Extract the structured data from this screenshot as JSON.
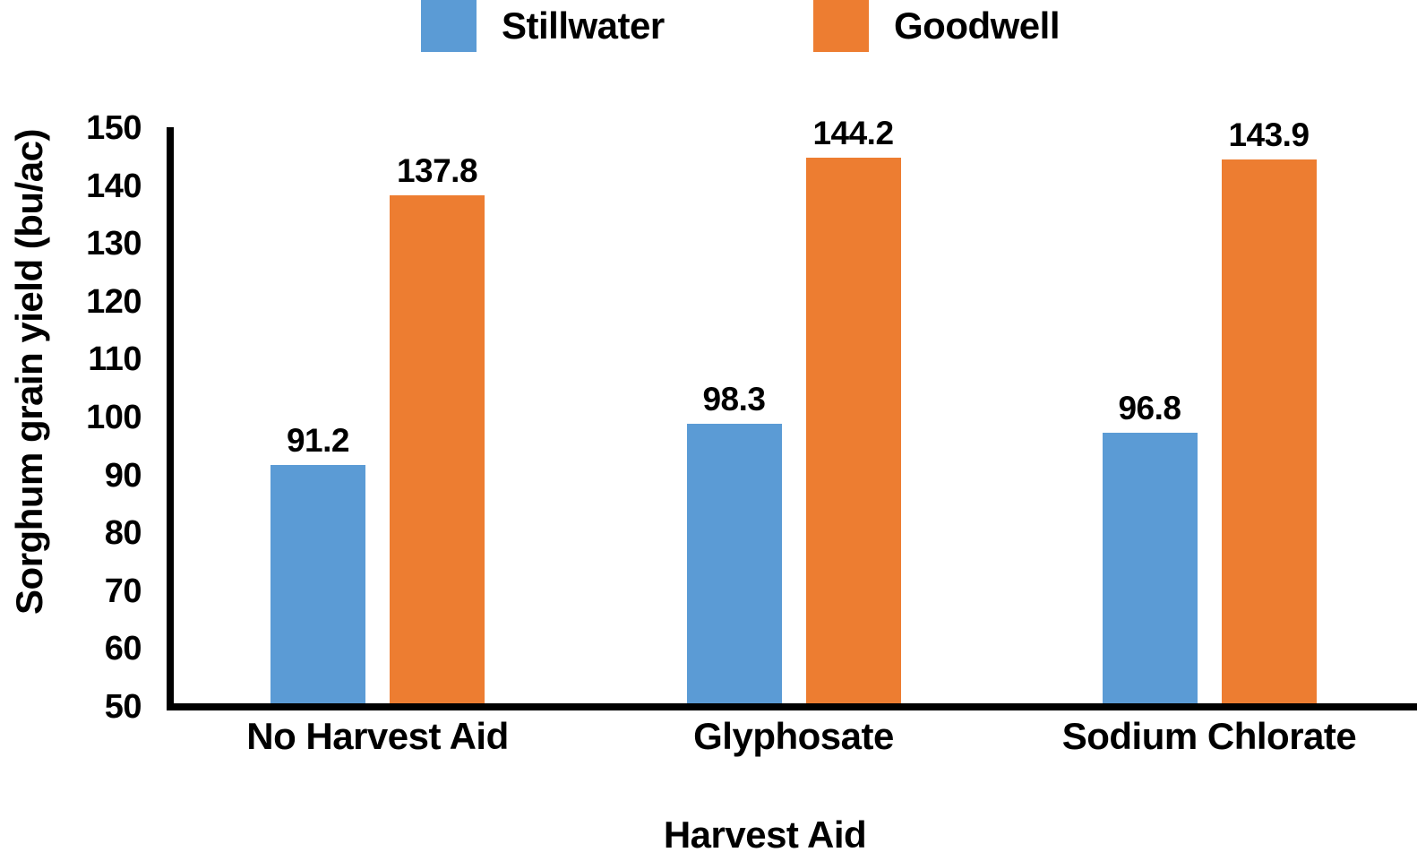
{
  "chart_data": {
    "type": "bar",
    "title": "",
    "xlabel": "Harvest Aid",
    "ylabel": "Sorghum grain yield (bu/ac)",
    "ylim": [
      50,
      150
    ],
    "ytick_step": 10,
    "yticks": [
      150,
      140,
      130,
      120,
      110,
      100,
      90,
      80,
      70,
      60,
      50
    ],
    "categories": [
      "No Harvest Aid",
      "Glyphosate",
      "Sodium Chlorate"
    ],
    "series": [
      {
        "name": "Stillwater",
        "color": "#5B9BD5",
        "values": [
          91.2,
          98.3,
          96.8
        ]
      },
      {
        "name": "Goodwell",
        "color": "#ED7D31",
        "values": [
          137.8,
          144.2,
          143.9
        ]
      }
    ],
    "bar_value_labels": [
      "91.2",
      "137.8",
      "98.3",
      "144.2",
      "96.8",
      "143.9"
    ],
    "legend_position": "top",
    "grid": false
  },
  "colors": {
    "stillwater_blue": "#5B9BD5",
    "goodwell_orange": "#ED7D31",
    "axis_black": "#000000",
    "text_black": "#000000",
    "background_white": "#FFFFFF"
  }
}
